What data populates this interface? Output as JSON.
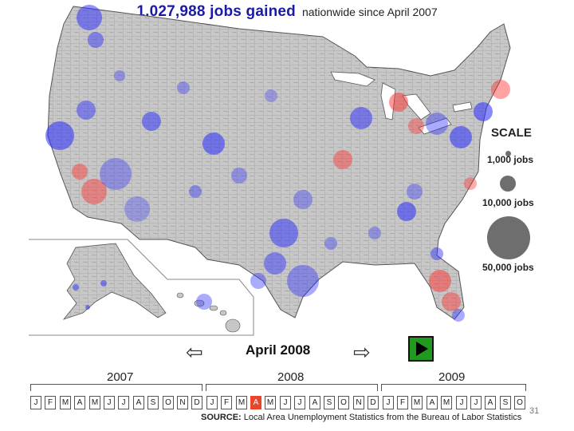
{
  "header": {
    "jobs_count": "1,027,988 jobs gained",
    "subtitle": "nationwide since April 2007",
    "accent_color": "#1a1aa6"
  },
  "scale": {
    "title": "SCALE",
    "items": [
      {
        "label": "1,000 jobs"
      },
      {
        "label": "10,000 jobs"
      },
      {
        "label": "50,000 jobs"
      }
    ]
  },
  "colors": {
    "gain": "#2a2aff",
    "loss": "#ff3030",
    "land": "#c7c7c7",
    "active_month": "#e8452a",
    "play_button": "#1f9a1f"
  },
  "navigation": {
    "current_month": "April 2008",
    "prev_icon": "left-arrow-icon",
    "next_icon": "right-arrow-icon",
    "play_icon": "play-icon"
  },
  "timeline": {
    "years": [
      "2007",
      "2008",
      "2009"
    ],
    "months": [
      "J",
      "F",
      "M",
      "A",
      "M",
      "J",
      "J",
      "A",
      "S",
      "O",
      "N",
      "D",
      "J",
      "F",
      "M",
      "A",
      "M",
      "J",
      "J",
      "A",
      "S",
      "O",
      "N",
      "D",
      "J",
      "F",
      "M",
      "A",
      "M",
      "J",
      "J",
      "A",
      "S",
      "O"
    ],
    "active_index": 15
  },
  "source": {
    "label": "SOURCE:",
    "text": "Local Area Unemployment Statistics from the Bureau of Labor Statistics"
  },
  "page_number": "31"
}
